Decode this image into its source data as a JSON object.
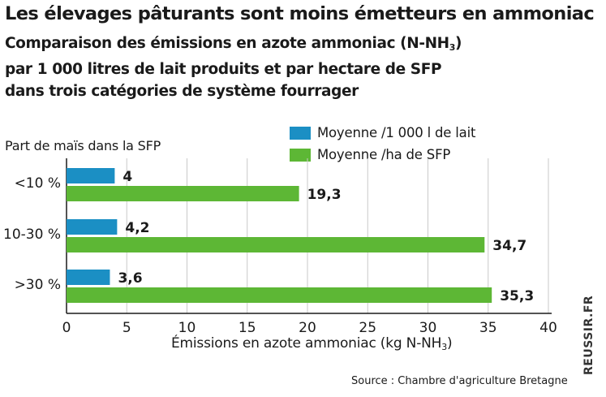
{
  "chart_data": {
    "type": "bar",
    "orientation": "horizontal",
    "title": "Les élevages pâturants sont moins émetteurs en ammoniac",
    "subtitle_lines": [
      "Comparaison des émissions en azote ammoniac (N-NH",
      "par 1 000 litres de lait produits et par hectare de SFP",
      "dans trois catégories de système fourrager"
    ],
    "subtitle_sub": "3",
    "subtitle_close": ")",
    "ylabel": "Part de maïs dans la SFP",
    "xlabel_main": "Émissions en azote ammoniac (kg N-NH",
    "xlabel_sub": "3",
    "xlabel_close": ")",
    "categories": [
      "<10 %",
      "10-30 %",
      ">30 %"
    ],
    "series": [
      {
        "name": "Moyenne /1 000 l de lait",
        "color": "#1b8fc4",
        "values": [
          4,
          4.2,
          3.6
        ],
        "labels": [
          "4",
          "4,2",
          "3,6"
        ]
      },
      {
        "name": "Moyenne /ha de SFP",
        "color": "#5db735",
        "values": [
          19.3,
          34.7,
          35.3
        ],
        "labels": [
          "19,3",
          "34,7",
          "35,3"
        ]
      }
    ],
    "xlim": [
      0,
      40
    ],
    "xticks": [
      0,
      5,
      10,
      15,
      20,
      25,
      30,
      35,
      40
    ],
    "grid": true,
    "legend_position": "top-right"
  },
  "source": "Source : Chambre d'agriculture Bretagne",
  "credit": "REUSSIR.FR"
}
